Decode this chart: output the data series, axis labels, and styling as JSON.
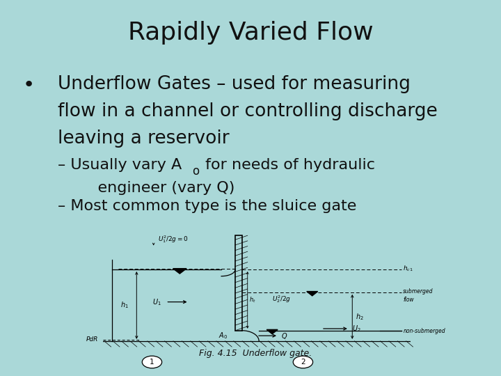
{
  "title": "Rapidly Varied Flow",
  "background_color": "#aad8d8",
  "title_fontsize": 26,
  "bullet_line1": "Underflow Gates – used for measuring",
  "bullet_line2": "flow in a channel or controlling discharge",
  "bullet_line3": "leaving a reservoir",
  "sub1a": "– Usually vary A",
  "sub1b": "o",
  "sub1c": " for needs of hydraulic",
  "sub1d": "    engineer (vary Q)",
  "sub2": "– Most common type is the sluice gate",
  "text_color": "#111111",
  "bullet_fontsize": 19,
  "sub_fontsize": 16,
  "fig_caption": "Fig. 4.15  Underflow gate."
}
